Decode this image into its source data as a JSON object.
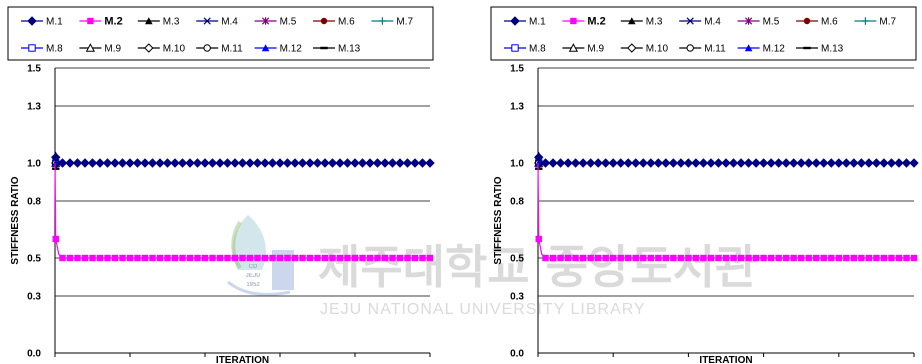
{
  "chart_data": [
    {
      "type": "line",
      "xlabel": "ITERATION",
      "ylabel": "STIFFNESS RATIO",
      "xlim": [
        0,
        500
      ],
      "ylim": [
        0.0,
        1.5
      ],
      "x_ticks": [
        0,
        100,
        200,
        300,
        400,
        500
      ],
      "y_ticks": [
        0.0,
        0.3,
        0.5,
        0.8,
        1.0,
        1.3,
        1.5
      ],
      "y_tick_labels": [
        "0.0",
        "0.3",
        "0.5",
        "0.8",
        "1.0",
        "1.3",
        "1.5"
      ],
      "grid": "horizontal",
      "legend_position": "top",
      "series": [
        {
          "name": "M.1",
          "color": "#000080",
          "marker": "diamond",
          "x": [
            0,
            1,
            5,
            10,
            500
          ],
          "y": [
            1.0,
            1.03,
            1.0,
            1.0,
            1.0
          ]
        },
        {
          "name": "M.2",
          "color": "#ff00ff",
          "marker": "square",
          "x": [
            0,
            1,
            5,
            10,
            500
          ],
          "y": [
            1.0,
            0.6,
            0.52,
            0.5,
            0.5
          ]
        },
        {
          "name": "M.3",
          "color": "#000000",
          "marker": "triangle",
          "x": [
            0,
            1,
            5,
            10,
            500
          ],
          "y": [
            1.0,
            1.04,
            1.0,
            1.0,
            1.0
          ]
        },
        {
          "name": "M.4",
          "color": "#000080",
          "marker": "x",
          "x": [
            0,
            1,
            5,
            10,
            500
          ],
          "y": [
            1.0,
            1.0,
            1.0,
            1.0,
            1.0
          ]
        },
        {
          "name": "M.5",
          "color": "#800080",
          "marker": "asterisk",
          "x": [
            0,
            1,
            5,
            10,
            500
          ],
          "y": [
            1.0,
            1.0,
            1.0,
            1.0,
            1.0
          ]
        },
        {
          "name": "M.6",
          "color": "#800000",
          "marker": "circle",
          "x": [
            0,
            1,
            5,
            10,
            500
          ],
          "y": [
            1.0,
            1.0,
            1.0,
            1.0,
            1.0
          ]
        },
        {
          "name": "M.7",
          "color": "#008080",
          "marker": "plus",
          "x": [
            0,
            1,
            5,
            10,
            500
          ],
          "y": [
            1.0,
            1.0,
            1.0,
            1.0,
            1.0
          ]
        },
        {
          "name": "M.8",
          "color": "#0000ff",
          "marker": "square-open",
          "x": [
            0,
            1,
            5,
            10,
            500
          ],
          "y": [
            1.0,
            1.0,
            1.0,
            1.0,
            1.0
          ]
        },
        {
          "name": "M.9",
          "color": "#000000",
          "marker": "triangle-open",
          "x": [
            0,
            1,
            5,
            10,
            500
          ],
          "y": [
            1.0,
            1.0,
            1.0,
            1.0,
            1.0
          ]
        },
        {
          "name": "M.10",
          "color": "#000000",
          "marker": "diamond-open",
          "x": [
            0,
            1,
            5,
            10,
            500
          ],
          "y": [
            1.0,
            1.0,
            1.0,
            1.0,
            1.0
          ]
        },
        {
          "name": "M.11",
          "color": "#000000",
          "marker": "circle-open",
          "x": [
            0,
            1,
            5,
            10,
            500
          ],
          "y": [
            1.0,
            1.0,
            1.0,
            1.0,
            1.0
          ]
        },
        {
          "name": "M.12",
          "color": "#0000ff",
          "marker": "triangle",
          "x": [
            0,
            1,
            5,
            10,
            500
          ],
          "y": [
            1.0,
            1.0,
            1.0,
            1.0,
            1.0
          ]
        },
        {
          "name": "M.13",
          "color": "#000000",
          "marker": "dash",
          "x": [
            0,
            1,
            5,
            10,
            500
          ],
          "y": [
            1.0,
            0.97,
            1.0,
            1.0,
            1.0
          ]
        }
      ]
    },
    {
      "type": "line",
      "xlabel": "ITERATION",
      "ylabel": "STIFFNESS RATIO",
      "xlim": [
        0,
        500
      ],
      "ylim": [
        0.0,
        1.5
      ],
      "x_ticks": [
        0,
        100,
        200,
        300,
        400,
        500
      ],
      "y_ticks": [
        0.0,
        0.3,
        0.5,
        0.8,
        1.0,
        1.3,
        1.5
      ],
      "y_tick_labels": [
        "0.0",
        "0.3",
        "0.5",
        "0.8",
        "1.0",
        "1.3",
        "1.5"
      ],
      "grid": "horizontal",
      "legend_position": "top",
      "series": [
        {
          "name": "M.1",
          "color": "#000080",
          "marker": "diamond",
          "x": [
            0,
            1,
            5,
            10,
            500
          ],
          "y": [
            1.0,
            1.03,
            1.0,
            1.0,
            1.0
          ]
        },
        {
          "name": "M.2",
          "color": "#ff00ff",
          "marker": "square",
          "x": [
            0,
            1,
            5,
            10,
            500
          ],
          "y": [
            1.0,
            0.6,
            0.52,
            0.5,
            0.5
          ]
        },
        {
          "name": "M.3",
          "color": "#000000",
          "marker": "triangle",
          "x": [
            0,
            1,
            5,
            10,
            500
          ],
          "y": [
            1.0,
            1.04,
            1.0,
            1.0,
            1.0
          ]
        },
        {
          "name": "M.4",
          "color": "#000080",
          "marker": "x",
          "x": [
            0,
            1,
            5,
            10,
            500
          ],
          "y": [
            1.0,
            1.0,
            1.0,
            1.0,
            1.0
          ]
        },
        {
          "name": "M.5",
          "color": "#800080",
          "marker": "asterisk",
          "x": [
            0,
            1,
            5,
            10,
            500
          ],
          "y": [
            1.0,
            1.0,
            1.0,
            1.0,
            1.0
          ]
        },
        {
          "name": "M.6",
          "color": "#800000",
          "marker": "circle",
          "x": [
            0,
            1,
            5,
            10,
            500
          ],
          "y": [
            1.0,
            1.0,
            1.0,
            1.0,
            1.0
          ]
        },
        {
          "name": "M.7",
          "color": "#008080",
          "marker": "plus",
          "x": [
            0,
            1,
            5,
            10,
            500
          ],
          "y": [
            1.0,
            1.0,
            1.0,
            1.0,
            1.0
          ]
        },
        {
          "name": "M.8",
          "color": "#0000ff",
          "marker": "square-open",
          "x": [
            0,
            1,
            5,
            10,
            500
          ],
          "y": [
            1.0,
            1.0,
            1.0,
            1.0,
            1.0
          ]
        },
        {
          "name": "M.9",
          "color": "#000000",
          "marker": "triangle-open",
          "x": [
            0,
            1,
            5,
            10,
            500
          ],
          "y": [
            1.0,
            1.0,
            1.0,
            1.0,
            1.0
          ]
        },
        {
          "name": "M.10",
          "color": "#000000",
          "marker": "diamond-open",
          "x": [
            0,
            1,
            5,
            10,
            500
          ],
          "y": [
            1.0,
            1.0,
            1.0,
            1.0,
            1.0
          ]
        },
        {
          "name": "M.11",
          "color": "#000000",
          "marker": "circle-open",
          "x": [
            0,
            1,
            5,
            10,
            500
          ],
          "y": [
            1.0,
            1.0,
            1.0,
            1.0,
            1.0
          ]
        },
        {
          "name": "M.12",
          "color": "#0000ff",
          "marker": "triangle",
          "x": [
            0,
            1,
            5,
            10,
            500
          ],
          "y": [
            1.0,
            1.0,
            1.0,
            1.0,
            1.0
          ]
        },
        {
          "name": "M.13",
          "color": "#000000",
          "marker": "dash",
          "x": [
            0,
            1,
            5,
            10,
            500
          ],
          "y": [
            1.0,
            0.97,
            1.0,
            1.0,
            1.0
          ]
        }
      ]
    }
  ],
  "watermark": {
    "korean_text": "제주대학교 중앙도서관",
    "english_text": "JEJU NATIONAL UNIVERSITY LIBRARY",
    "logo_lines": [
      "CD",
      "JEJU",
      "1952"
    ],
    "color": "#bcbcbc"
  }
}
